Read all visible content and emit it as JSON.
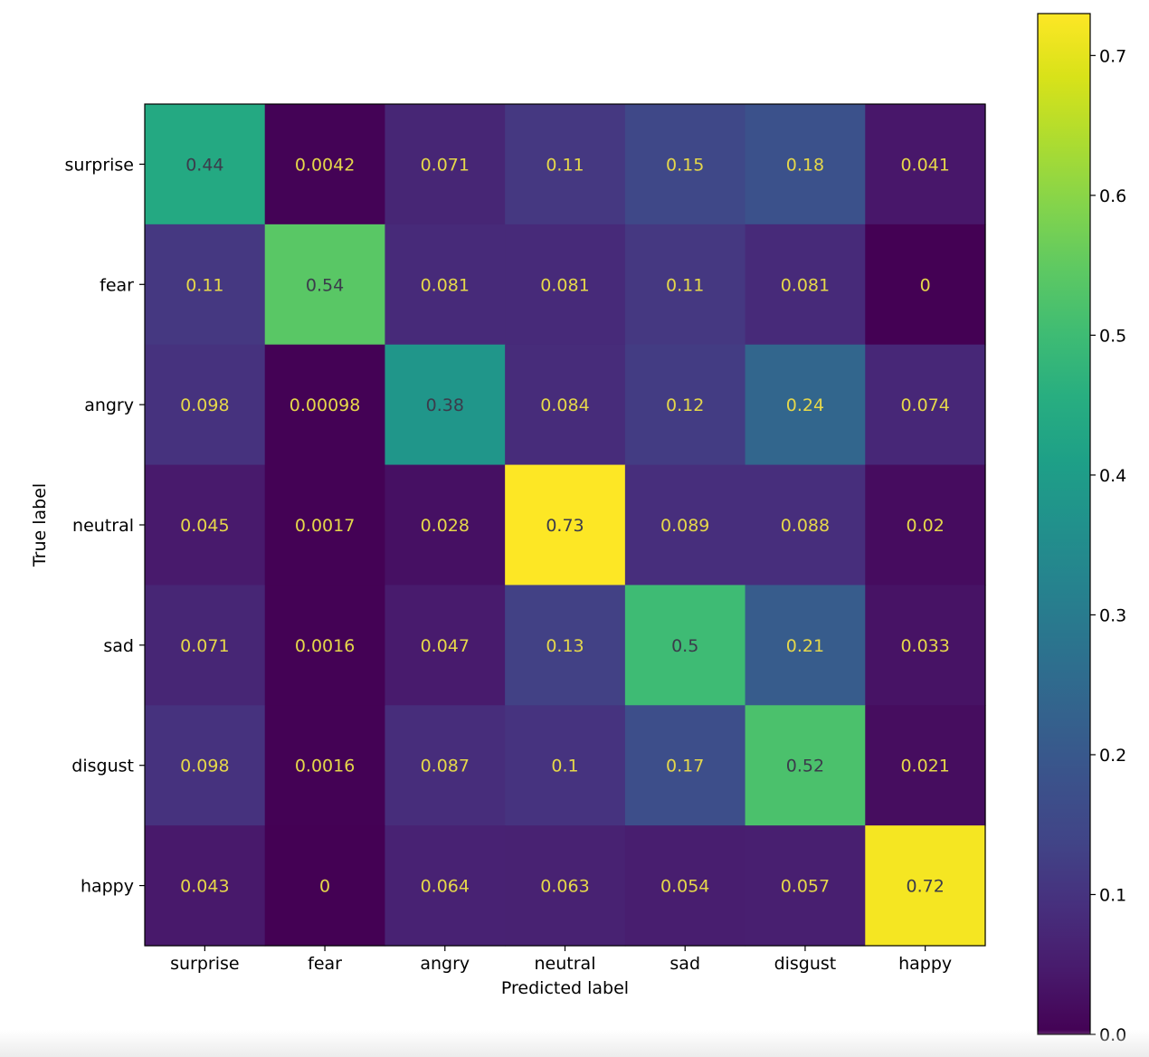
{
  "chart_data": {
    "type": "heatmap",
    "title": "",
    "xlabel": "Predicted label",
    "ylabel": "True label",
    "x_categories": [
      "surprise",
      "fear",
      "angry",
      "neutral",
      "sad",
      "disgust",
      "happy"
    ],
    "y_categories": [
      "surprise",
      "fear",
      "angry",
      "neutral",
      "sad",
      "disgust",
      "happy"
    ],
    "values": [
      [
        0.44,
        0.0042,
        0.071,
        0.11,
        0.15,
        0.18,
        0.041
      ],
      [
        0.11,
        0.54,
        0.081,
        0.081,
        0.11,
        0.081,
        0
      ],
      [
        0.098,
        0.00098,
        0.38,
        0.084,
        0.12,
        0.24,
        0.074
      ],
      [
        0.045,
        0.0017,
        0.028,
        0.73,
        0.089,
        0.088,
        0.02
      ],
      [
        0.071,
        0.0016,
        0.047,
        0.13,
        0.5,
        0.21,
        0.033
      ],
      [
        0.098,
        0.0016,
        0.087,
        0.1,
        0.17,
        0.52,
        0.021
      ],
      [
        0.043,
        0,
        0.064,
        0.063,
        0.054,
        0.057,
        0.72
      ]
    ],
    "labels": [
      [
        "0.44",
        "0.0042",
        "0.071",
        "0.11",
        "0.15",
        "0.18",
        "0.041"
      ],
      [
        "0.11",
        "0.54",
        "0.081",
        "0.081",
        "0.11",
        "0.081",
        "0"
      ],
      [
        "0.098",
        "0.00098",
        "0.38",
        "0.084",
        "0.12",
        "0.24",
        "0.074"
      ],
      [
        "0.045",
        "0.0017",
        "0.028",
        "0.73",
        "0.089",
        "0.088",
        "0.02"
      ],
      [
        "0.071",
        "0.0016",
        "0.047",
        "0.13",
        "0.5",
        "0.21",
        "0.033"
      ],
      [
        "0.098",
        "0.0016",
        "0.087",
        "0.1",
        "0.17",
        "0.52",
        "0.021"
      ],
      [
        "0.043",
        "0",
        "0.064",
        "0.063",
        "0.054",
        "0.057",
        "0.72"
      ]
    ],
    "colormap": "viridis",
    "color_range": [
      0,
      0.73
    ],
    "colorbar_ticks": [
      0.0,
      0.1,
      0.2,
      0.3,
      0.4,
      0.5,
      0.6,
      0.7
    ],
    "colorbar_tick_labels": [
      "0.0",
      "0.1",
      "0.2",
      "0.3",
      "0.4",
      "0.5",
      "0.6",
      "0.7"
    ],
    "grid": false,
    "colorbar_placement": "right"
  }
}
